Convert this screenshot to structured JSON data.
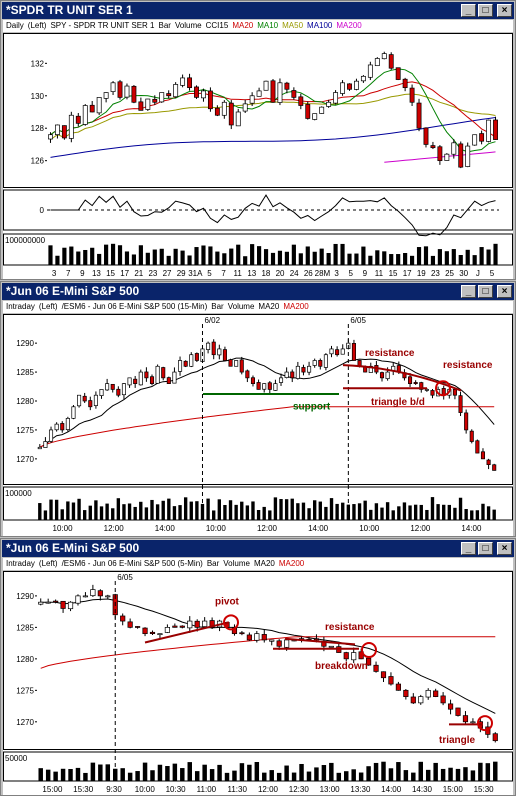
{
  "windows": [
    {
      "title": "*SPDR TR UNIT SER 1",
      "info": [
        {
          "text": "Daily",
          "color": "#000000"
        },
        {
          "text": "(Left)",
          "color": "#000000"
        },
        {
          "text": "SPY - SPDR TR UNIT SER 1",
          "color": "#000000"
        },
        {
          "text": "Bar",
          "color": "#000000"
        },
        {
          "text": "Volume",
          "color": "#000000"
        },
        {
          "text": "CCI15",
          "color": "#000000"
        },
        {
          "text": "MA20",
          "color": "#cc0000"
        },
        {
          "text": "MA10",
          "color": "#008000"
        },
        {
          "text": "MA50",
          "color": "#999900"
        },
        {
          "text": "MA100",
          "color": "#000099"
        },
        {
          "text": "MA200",
          "color": "#cc00cc"
        }
      ]
    },
    {
      "title": "*Jun 06  E-Mini S&P 500",
      "info": [
        {
          "text": "Intraday",
          "color": "#000000"
        },
        {
          "text": "(Left)",
          "color": "#000000"
        },
        {
          "text": "/ESM6 - Jun 06 E-Mini S&P 500 (15-Min)",
          "color": "#000000"
        },
        {
          "text": "Bar",
          "color": "#000000"
        },
        {
          "text": "Volume",
          "color": "#000000"
        },
        {
          "text": "MA20",
          "color": "#000000"
        },
        {
          "text": "MA200",
          "color": "#cc0000"
        }
      ]
    },
    {
      "title": "*Jun 06  E-Mini S&P 500",
      "info": [
        {
          "text": "Intraday",
          "color": "#000000"
        },
        {
          "text": "(Left)",
          "color": "#000000"
        },
        {
          "text": "/ESM6 - Jun 06 E-Mini S&P 500 (5-Min)",
          "color": "#000000"
        },
        {
          "text": "Bar",
          "color": "#000000"
        },
        {
          "text": "Volume",
          "color": "#000000"
        },
        {
          "text": "MA20",
          "color": "#000000"
        },
        {
          "text": "MA200",
          "color": "#cc0000"
        }
      ]
    }
  ],
  "chart_data": [
    {
      "type": "candlestick",
      "name": "daily",
      "yticks": [
        126,
        128,
        130,
        132
      ],
      "ylim": [
        124.5,
        133.5
      ],
      "xticks": [
        "3",
        "7",
        "9",
        "13",
        "15",
        "17",
        "21",
        "23",
        "27",
        "29",
        "31A",
        "5",
        "7",
        "11",
        "13",
        "18",
        "20",
        "24",
        "26",
        "28M",
        "3",
        "5",
        "9",
        "11",
        "15",
        "17",
        "19",
        "23",
        "25",
        "30",
        "J",
        "5"
      ],
      "closes": [
        127.6,
        128.2,
        127.4,
        128.8,
        128.3,
        129.4,
        129.0,
        129.9,
        130.2,
        130.8,
        129.9,
        130.6,
        129.6,
        129.1,
        129.8,
        129.6,
        130.2,
        130.0,
        130.7,
        131.1,
        130.5,
        129.9,
        130.3,
        129.2,
        128.8,
        129.6,
        128.2,
        129.0,
        129.5,
        130.0,
        130.3,
        130.9,
        129.6,
        130.8,
        130.4,
        129.9,
        129.4,
        128.6,
        128.9,
        129.3,
        129.6,
        130.2,
        130.8,
        130.4,
        130.9,
        131.2,
        131.9,
        132.3,
        132.6,
        131.7,
        131.0,
        130.5,
        129.6,
        128.0,
        127.0,
        126.8,
        126.0,
        126.4,
        127.1,
        125.6,
        126.9,
        127.6,
        127.2,
        128.5,
        127.3
      ],
      "cci_label": "0",
      "volume_label": "100000000"
    },
    {
      "type": "candlestick",
      "name": "15-min",
      "yticks": [
        1270,
        1275,
        1280,
        1285,
        1290
      ],
      "ylim": [
        1266,
        1294
      ],
      "xticks": [
        "10:00",
        "12:00",
        "14:00",
        "10:00",
        "12:00",
        "14:00",
        "10:00",
        "12:00",
        "14:00"
      ],
      "date_markers": [
        "6/02",
        "6/05"
      ],
      "closes": [
        1272,
        1273,
        1275,
        1276,
        1275,
        1277,
        1279,
        1281,
        1280,
        1279,
        1281,
        1282,
        1283,
        1282,
        1281,
        1283,
        1284,
        1283,
        1285,
        1284,
        1283,
        1286,
        1284,
        1283,
        1285,
        1287,
        1286,
        1288,
        1287,
        1289,
        1290,
        1288,
        1289,
        1287,
        1286,
        1287,
        1285,
        1284,
        1283,
        1282,
        1283,
        1282,
        1283,
        1284,
        1285,
        1284,
        1286,
        1285,
        1286,
        1287,
        1286,
        1288,
        1289,
        1288,
        1289,
        1290,
        1287,
        1286,
        1285,
        1286,
        1285,
        1284,
        1285,
        1286,
        1285,
        1284,
        1283,
        1283,
        1282,
        1282,
        1281,
        1282,
        1281,
        1282,
        1281,
        1278,
        1275,
        1273,
        1271,
        1270,
        1269,
        1268
      ],
      "volume_label": "100000"
    },
    {
      "type": "candlestick",
      "name": "5-min",
      "yticks": [
        1270,
        1275,
        1280,
        1285,
        1290
      ],
      "ylim": [
        1266,
        1293
      ],
      "xticks": [
        "15:00",
        "15:30",
        "9:30",
        "10:00",
        "10:30",
        "11:00",
        "11:30",
        "12:00",
        "12:30",
        "13:00",
        "13:30",
        "14:00",
        "14:30",
        "15:00",
        "15:30"
      ],
      "date_markers": [
        "6/05"
      ],
      "closes": [
        1289,
        1289,
        1289,
        1288,
        1289,
        1290,
        1290,
        1291,
        1290,
        1290,
        1287,
        1286,
        1285,
        1285,
        1284,
        1284,
        1284,
        1285,
        1285,
        1285,
        1286,
        1285,
        1286,
        1285,
        1286,
        1285,
        1284,
        1284,
        1283,
        1284,
        1283,
        1283,
        1282,
        1283,
        1283,
        1283,
        1283,
        1283,
        1282,
        1282,
        1281,
        1280,
        1281,
        1280,
        1279,
        1278,
        1277,
        1276,
        1275,
        1274,
        1273,
        1274,
        1275,
        1274,
        1273,
        1272,
        1271,
        1270,
        1270,
        1269,
        1268,
        1267
      ],
      "volume_label": "50000"
    }
  ],
  "annotations": {
    "support": "support",
    "resistance1": "resistance",
    "resistance2": "resistance",
    "triangle_bd": "triangle b/d",
    "pivot": "pivot",
    "resistance3": "resistance",
    "breakdown": "breakdown",
    "triangle": "triangle"
  },
  "colors": {
    "title_bg": "#0a246a",
    "up_candle": "#ffffff",
    "down_candle": "#cc0000",
    "ma20": "#cc0000",
    "ma10": "#008000",
    "ma50": "#999900",
    "ma100": "#000099",
    "ma200": "#cc00cc",
    "annotation_red": "#990000",
    "annotation_green": "#006600"
  }
}
